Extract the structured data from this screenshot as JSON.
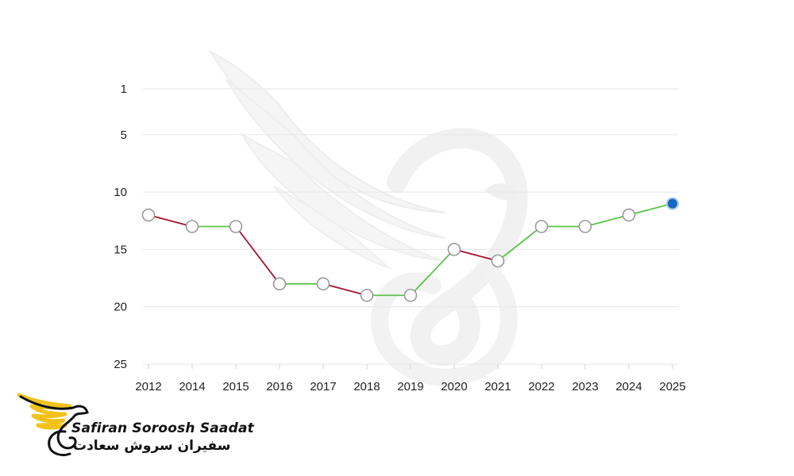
{
  "chart_data": {
    "type": "line",
    "categories": [
      "2012",
      "2014",
      "2015",
      "2016",
      "2017",
      "2018",
      "2019",
      "2020",
      "2021",
      "2022",
      "2023",
      "2024",
      "2025"
    ],
    "series": [
      {
        "values": [
          12,
          13,
          13,
          18,
          18,
          19,
          19,
          15,
          16,
          13,
          13,
          12,
          11
        ]
      }
    ],
    "y_ticks": [
      "1",
      "5",
      "10",
      "15",
      "20",
      "25"
    ],
    "ylim": [
      1,
      25
    ],
    "y_inverted": true,
    "grid": "horizontal",
    "colors": {
      "rise": "#5cc44a",
      "fall": "#a5122f",
      "point_fill": "#ffffff",
      "point_stroke": "#9a9a9a",
      "last_point": "#1566c2",
      "grid": "#e6e6e6"
    }
  },
  "brand": {
    "name_en": "Safiran Soroosh Saadat",
    "name_fa": "سفیران سروش سعادت",
    "colors": {
      "wing": "#f2c21b",
      "ink": "#111111"
    }
  }
}
